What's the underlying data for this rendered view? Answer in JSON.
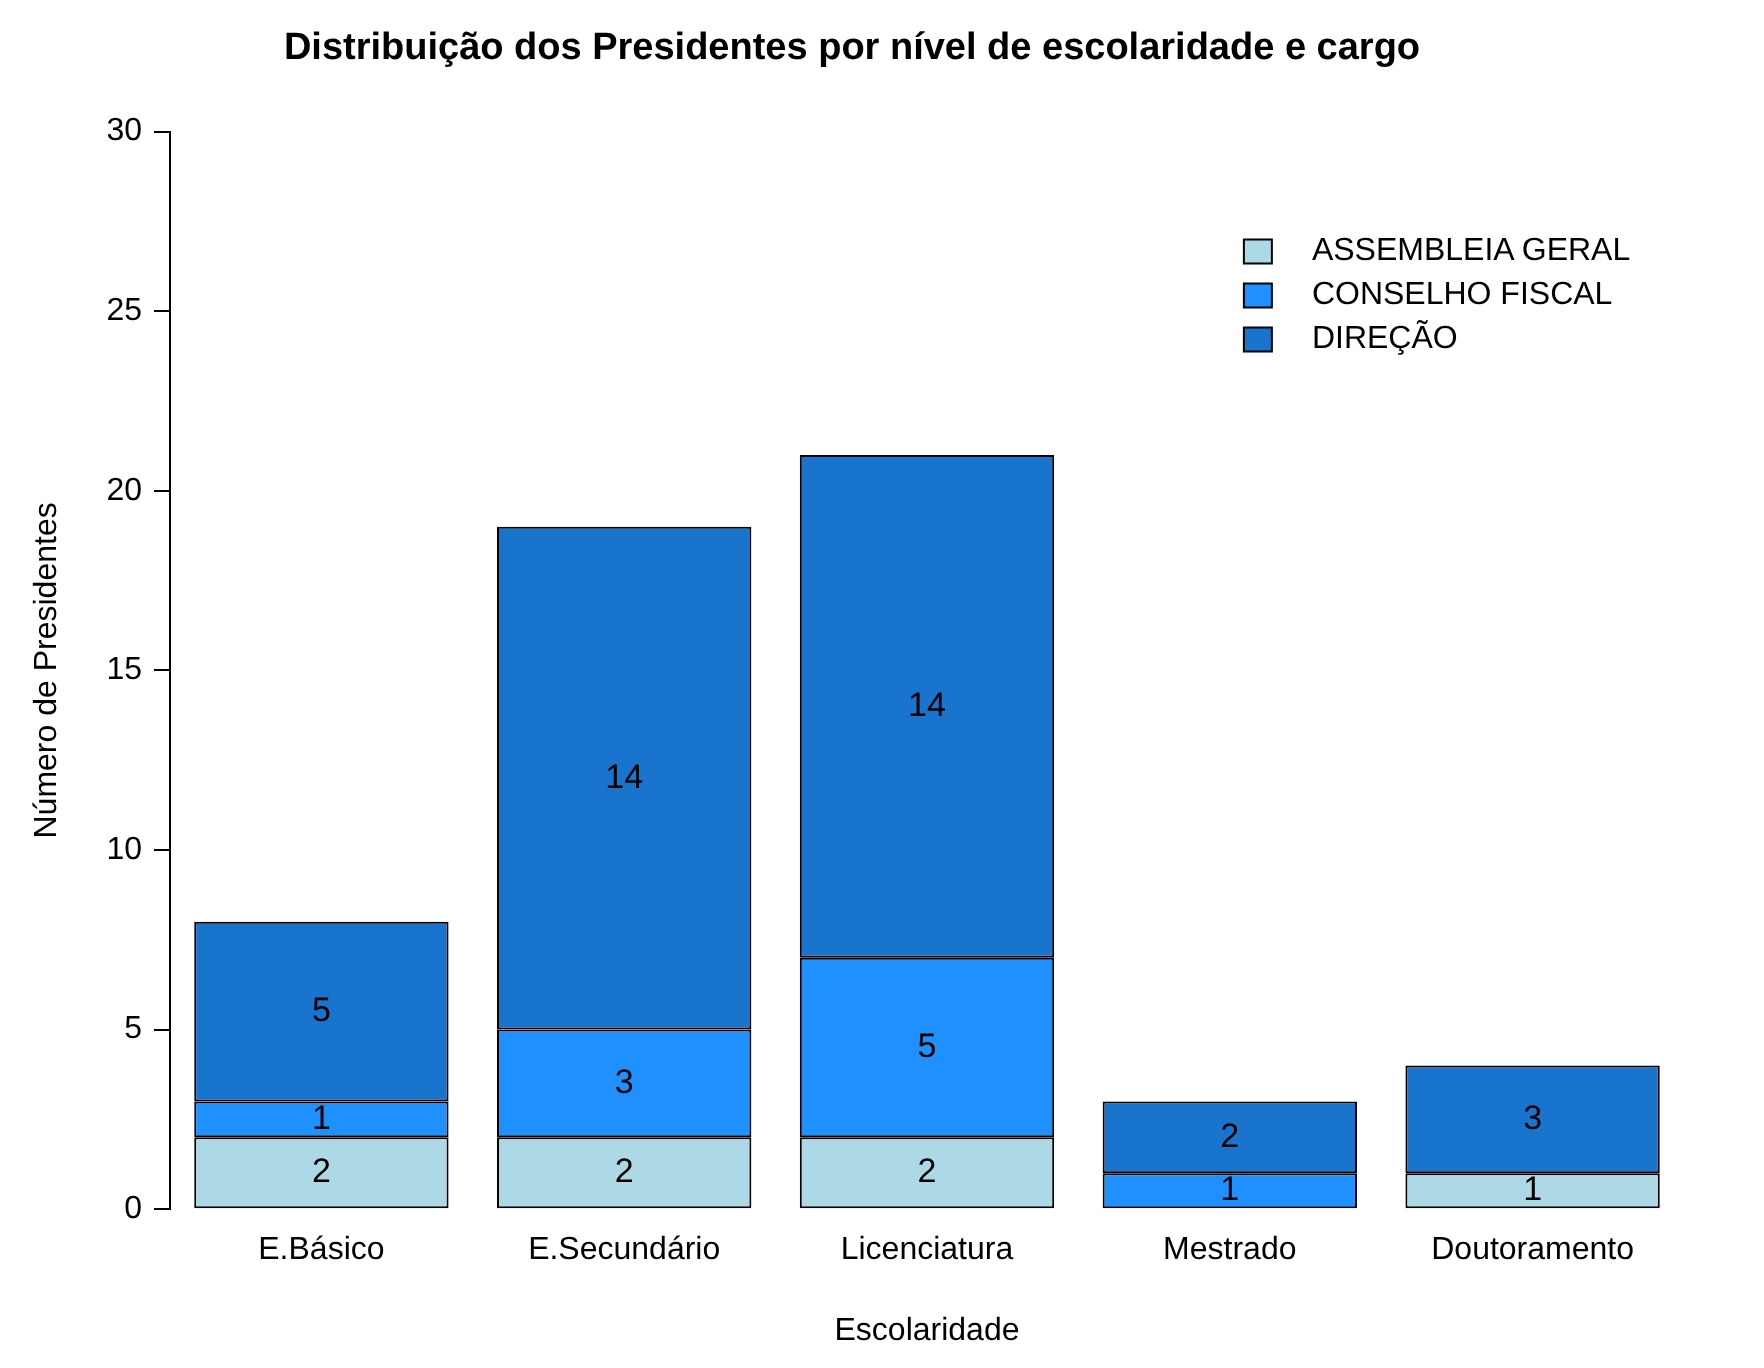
{
  "chart_data": {
    "type": "bar",
    "title": "Distribuição dos Presidentes por nível de escolaridade e cargo",
    "xlabel": "Escolaridade",
    "ylabel": "Número de Presidentes",
    "categories": [
      "E.Básico",
      "E.Secundário",
      "Licenciatura",
      "Mestrado",
      "Doutoramento"
    ],
    "series": [
      {
        "name": "ASSEMBLEIA GERAL",
        "color": "#add8e6",
        "values": [
          2,
          2,
          2,
          0,
          1
        ],
        "value_labels": [
          "2",
          "2",
          "2",
          null,
          "1"
        ]
      },
      {
        "name": "CONSELHO FISCAL",
        "color": "#1e90ff",
        "values": [
          1,
          3,
          5,
          1,
          0
        ],
        "value_labels": [
          "1",
          "3",
          "5",
          "1",
          null
        ]
      },
      {
        "name": "DIREÇÃO",
        "color": "#1874cd",
        "values": [
          5,
          14,
          14,
          2,
          3
        ],
        "value_labels": [
          "5",
          "14",
          "14",
          "2",
          "3"
        ]
      }
    ],
    "stacked": true,
    "ylim": [
      0,
      30
    ],
    "yticks": [
      0,
      5,
      10,
      15,
      20,
      25,
      30
    ],
    "grid": false,
    "legend": "top right"
  }
}
